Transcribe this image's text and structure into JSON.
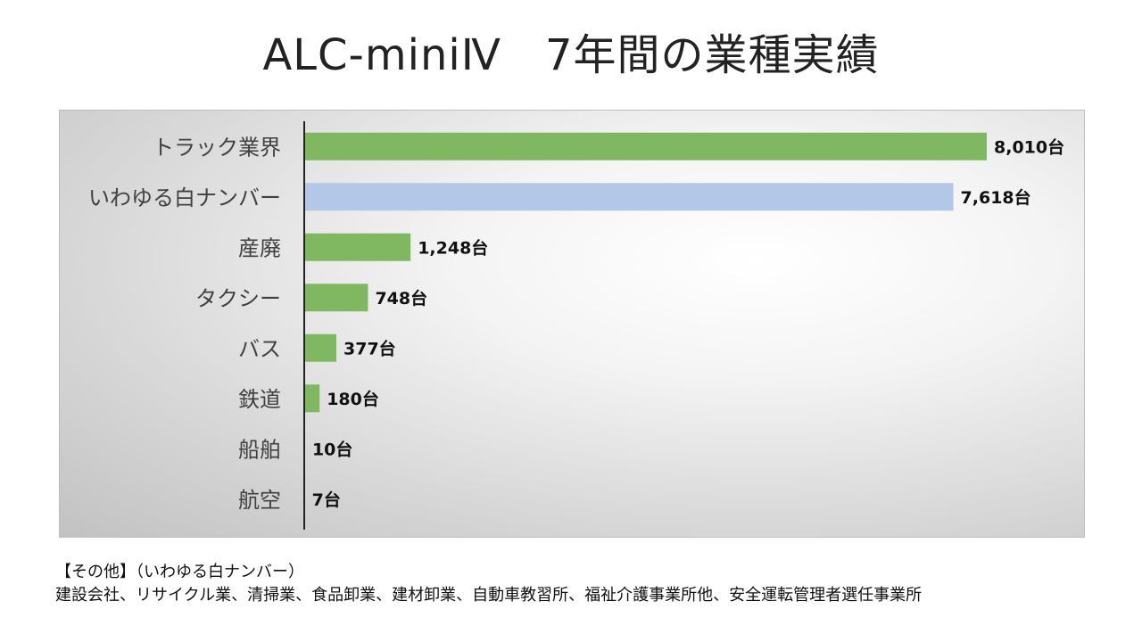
{
  "title": "ALC-miniⅣ　7年間の業種実績",
  "chart_data": {
    "type": "bar",
    "orientation": "horizontal",
    "categories": [
      "トラック業界",
      "いわゆる白ナンバー",
      "産廃",
      "タクシー",
      "バス",
      "鉄道",
      "船舶",
      "航空"
    ],
    "values": [
      8010,
      7618,
      1248,
      748,
      377,
      180,
      10,
      7
    ],
    "data_labels": [
      "8,010台",
      "7,618台",
      "1,248台",
      "748台",
      "377台",
      "180台",
      "10台",
      "7台"
    ],
    "bar_colors": [
      "#7fb860",
      "#b3c7e6",
      "#7fb860",
      "#7fb860",
      "#7fb860",
      "#7fb860",
      "#7fb860",
      "#7fb860"
    ],
    "xlim": [
      0,
      8010
    ],
    "grid": false,
    "legend": "none"
  },
  "footnote": {
    "line1": "【その他】（いわゆる白ナンバー）",
    "line2": "建設会社、リサイクル業、清掃業、食品卸業、建材卸業、自動車教習所、福祉介護事業所他、安全運転管理者選任事業所"
  }
}
